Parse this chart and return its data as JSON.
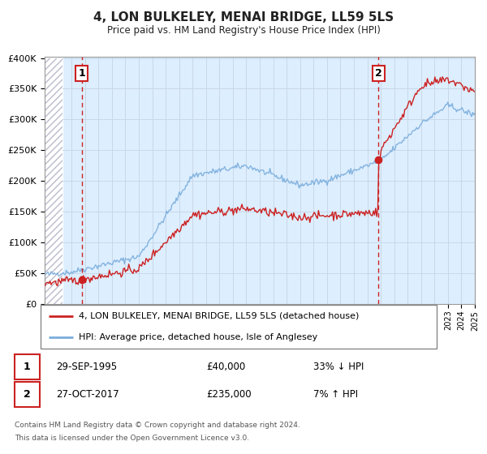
{
  "title": "4, LON BULKELEY, MENAI BRIDGE, LL59 5LS",
  "subtitle": "Price paid vs. HM Land Registry's House Price Index (HPI)",
  "legend_line1": "4, LON BULKELEY, MENAI BRIDGE, LL59 5LS (detached house)",
  "legend_line2": "HPI: Average price, detached house, Isle of Anglesey",
  "footer1": "Contains HM Land Registry data © Crown copyright and database right 2024.",
  "footer2": "This data is licensed under the Open Government Licence v3.0.",
  "sale1_label": "1",
  "sale1_date": "29-SEP-1995",
  "sale1_price": "£40,000",
  "sale1_hpi": "33% ↓ HPI",
  "sale2_label": "2",
  "sale2_date": "27-OCT-2017",
  "sale2_price": "£235,000",
  "sale2_hpi": "7% ↑ HPI",
  "sale1_year": 1995.75,
  "sale1_value": 40000,
  "sale2_year": 2017.83,
  "sale2_value": 235000,
  "xmin": 1993,
  "xmax": 2025,
  "ymin": 0,
  "ymax": 400000,
  "yticks": [
    0,
    50000,
    100000,
    150000,
    200000,
    250000,
    300000,
    350000,
    400000
  ],
  "ytick_labels": [
    "£0",
    "£50K",
    "£100K",
    "£150K",
    "£200K",
    "£250K",
    "£300K",
    "£350K",
    "£400K"
  ],
  "hpi_color": "#7aaddc",
  "price_color": "#cc2222",
  "sale_dot_color": "#cc2222",
  "vline_color": "#cc2222",
  "grid_color": "#c8d8e8",
  "bg_color": "#ddeeff",
  "plot_bg_color": "#ddeeff",
  "title_color": "#222222",
  "hatch_color": "#bbbbcc"
}
